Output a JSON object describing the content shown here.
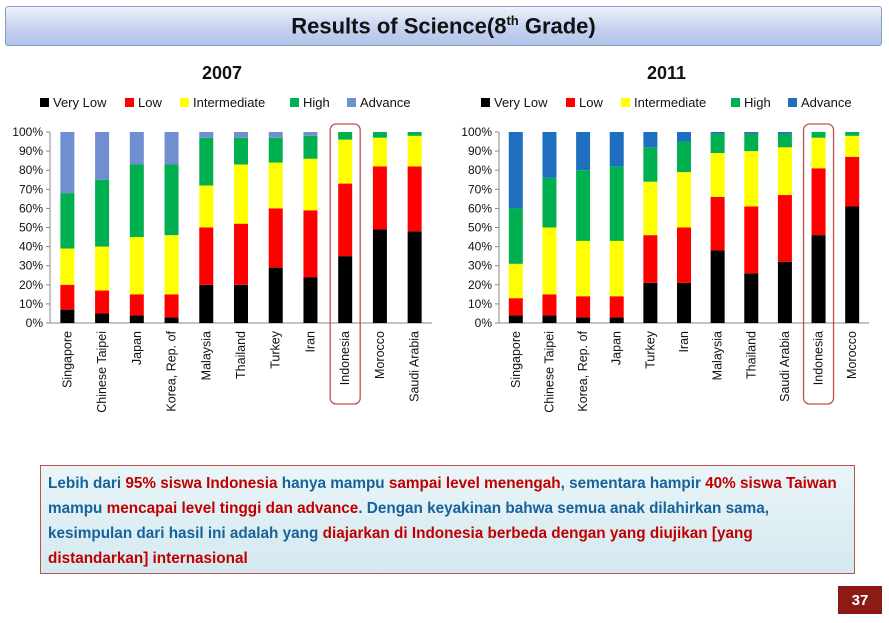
{
  "slide": {
    "title_main": "Results of Science(8",
    "title_sup": "th",
    "title_end": " Grade)",
    "page_number": "37"
  },
  "chart_data": [
    {
      "type": "bar",
      "stacked": true,
      "title": "2007",
      "legend": [
        "Very Low",
        "Low",
        "Intermediate",
        "High",
        "Advance"
      ],
      "y_ticks": [
        "100%",
        "90%",
        "80%",
        "70%",
        "60%",
        "50%",
        "40%",
        "30%",
        "20%",
        "10%",
        "0%"
      ],
      "ylim": [
        0,
        100
      ],
      "highlight": "Indonesia",
      "categories": [
        "Singapore",
        "Chinese Taipei",
        "Japan",
        "Korea, Rep. of",
        "Malaysia",
        "Thailand",
        "Turkey",
        "Iran",
        "Indonesia",
        "Morocco",
        "Saudi Arabia"
      ],
      "series": [
        {
          "name": "Very Low",
          "color": "#000000",
          "values": [
            7,
            5,
            4,
            3,
            20,
            20,
            29,
            24,
            35,
            49,
            48
          ]
        },
        {
          "name": "Low",
          "color": "#ff0000",
          "values": [
            13,
            12,
            11,
            12,
            30,
            32,
            31,
            35,
            38,
            33,
            34
          ]
        },
        {
          "name": "Intermediate",
          "color": "#ffff00",
          "values": [
            19,
            23,
            30,
            31,
            22,
            31,
            24,
            27,
            23,
            15,
            16
          ]
        },
        {
          "name": "High",
          "color": "#00b050",
          "values": [
            29,
            35,
            38,
            37,
            25,
            14,
            13,
            12,
            4,
            3,
            2
          ]
        },
        {
          "name": "Advance",
          "color": "#6f8fd0",
          "values": [
            32,
            25,
            17,
            17,
            3,
            3,
            3,
            2,
            0,
            0,
            0
          ]
        }
      ]
    },
    {
      "type": "bar",
      "stacked": true,
      "title": "2011",
      "legend": [
        "Very Low",
        "Low",
        "Intermediate",
        "High",
        "Advance"
      ],
      "y_ticks": [
        "100%",
        "90%",
        "80%",
        "70%",
        "60%",
        "50%",
        "40%",
        "30%",
        "20%",
        "10%",
        "0%"
      ],
      "ylim": [
        0,
        100
      ],
      "highlight": "Indonesia",
      "categories": [
        "Singapore",
        "Chinese Taipei",
        "Korea, Rep. of",
        "Japan",
        "Turkey",
        "Iran",
        "Malaysia",
        "Thailand",
        "Saudi Arabia",
        "Indonesia",
        "Morocco"
      ],
      "series": [
        {
          "name": "Very Low",
          "color": "#000000",
          "values": [
            4,
            4,
            3,
            3,
            21,
            21,
            38,
            26,
            32,
            46,
            61
          ]
        },
        {
          "name": "Low",
          "color": "#ff0000",
          "values": [
            9,
            11,
            11,
            11,
            25,
            29,
            28,
            35,
            35,
            35,
            26
          ]
        },
        {
          "name": "Intermediate",
          "color": "#ffff00",
          "values": [
            18,
            35,
            29,
            29,
            28,
            29,
            23,
            29,
            25,
            16,
            11
          ]
        },
        {
          "name": "High",
          "color": "#00b050",
          "values": [
            29,
            26,
            37,
            39,
            18,
            16,
            10,
            9,
            7,
            3,
            2
          ]
        },
        {
          "name": "Advance",
          "color": "#1e6fc0",
          "values": [
            40,
            24,
            20,
            18,
            8,
            5,
            1,
            1,
            1,
            0,
            0
          ]
        }
      ]
    }
  ],
  "note": {
    "s1": "Lebih dari ",
    "s2": "95% siswa Indonesia",
    "s3": " hanya mampu ",
    "s4": "sampai level menengah",
    "s5": ", sementara hampir ",
    "s6": "40% siswa Taiwan",
    "s7": " mampu ",
    "s8": "mencapai",
    "s9": " level tinggi dan advance",
    "s10": ". Dengan keyakinan bahwa semua anak dilahirkan sama, kesimpulan dari hasil ini adalah yang ",
    "s11": "diajarkan di Indonesia berbeda dengan yang diujikan [yang distandarkan] internasional"
  }
}
